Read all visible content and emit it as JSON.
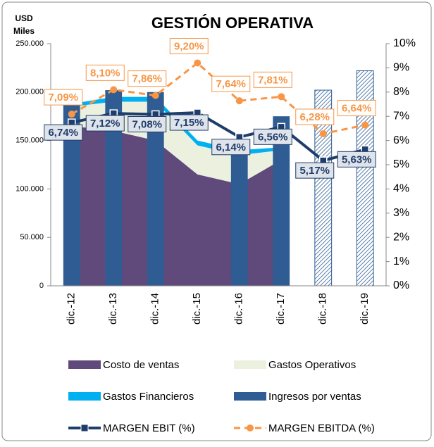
{
  "chart_data": {
    "type": "combo",
    "title": "GESTIÓN OPERATIVA",
    "y_axis_label": [
      "USD",
      "Miles"
    ],
    "categories": [
      "dic.-12",
      "dic.-13",
      "dic.-14",
      "dic.-15",
      "dic.-16",
      "dic.-17",
      "dic.-18",
      "dic.-19"
    ],
    "ylim": [
      0,
      250000
    ],
    "yticks": [
      0,
      {
        "value": 50000,
        "label": "50.000"
      },
      {
        "value": 100000,
        "label": "100.000"
      },
      {
        "value": 150000,
        "label": "150.000"
      },
      {
        "value": 200000,
        "label": "200.000"
      },
      {
        "value": 250000,
        "label": "250.000"
      }
    ],
    "y2lim": [
      0,
      10
    ],
    "y2ticks": [
      {
        "value": 0,
        "label": "0%"
      },
      {
        "value": 1,
        "label": "1%"
      },
      {
        "value": 2,
        "label": "2%"
      },
      {
        "value": 3,
        "label": "3%"
      },
      {
        "value": 4,
        "label": "4%"
      },
      {
        "value": 5,
        "label": "5%"
      },
      {
        "value": 6,
        "label": "6%"
      },
      {
        "value": 7,
        "label": "7%"
      },
      {
        "value": 8,
        "label": "8%"
      },
      {
        "value": 9,
        "label": "9%"
      },
      {
        "value": 10,
        "label": "10%"
      }
    ],
    "series": [
      {
        "name": "Costo de ventas",
        "type": "area",
        "color": "#604a7b",
        "values": [
          165000,
          160000,
          150000,
          115000,
          105000,
          130000,
          null,
          null
        ]
      },
      {
        "name": "Gastos Operativos",
        "type": "area",
        "color": "#ebf1de",
        "values": [
          20000,
          30000,
          40000,
          30000,
          30000,
          10000,
          null,
          null
        ]
      },
      {
        "name": "Gastos Financieros",
        "type": "area",
        "color": "#00b0f0",
        "values": [
          3000,
          5000,
          5000,
          5000,
          5000,
          3000,
          null,
          null
        ]
      },
      {
        "name": "Ingresos por ventas",
        "type": "bar",
        "color": "#2f5d93",
        "values": [
          188000,
          202000,
          200000,
          null,
          150000,
          175000,
          202000,
          222000
        ]
      },
      {
        "name": "MARGEN EBIT (%)",
        "type": "line",
        "axis": "y2",
        "color": "#1f3d6b",
        "values": [
          6.74,
          7.12,
          7.08,
          7.15,
          6.14,
          6.56,
          5.17,
          5.63
        ],
        "value_labels": [
          "6,74%",
          "7,12%",
          "7,08%",
          "7,15%",
          "6,14%",
          "6,56%",
          "5,17%",
          "5,63%"
        ]
      },
      {
        "name": "MARGEN EBITDA (%)",
        "type": "line",
        "axis": "y2",
        "color": "#f79646",
        "dashed": true,
        "values": [
          7.09,
          8.1,
          7.86,
          9.2,
          7.64,
          7.81,
          6.28,
          6.64
        ],
        "value_labels": [
          "7,09%",
          "8,10%",
          "7,86%",
          "9,20%",
          "7,64%",
          "7,81%",
          "6,28%",
          "6,64%"
        ]
      }
    ]
  }
}
